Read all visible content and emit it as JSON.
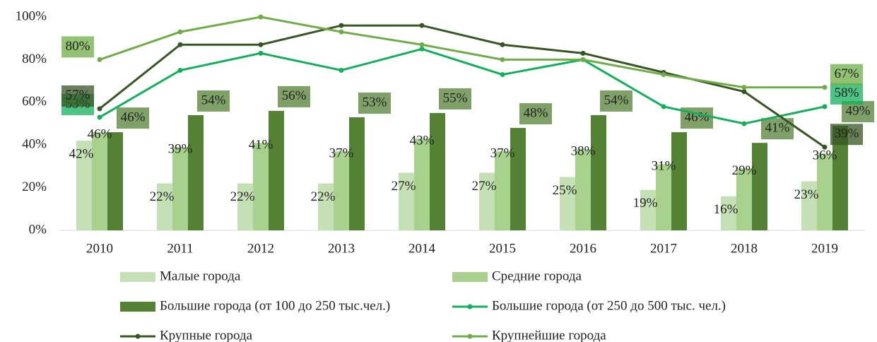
{
  "chart_data": {
    "type": "bar",
    "categories": [
      "2010",
      "2011",
      "2012",
      "2013",
      "2014",
      "2015",
      "2016",
      "2017",
      "2018",
      "2019"
    ],
    "ylim": [
      0,
      100
    ],
    "yticks": [
      {
        "value": 0,
        "label": "0%"
      },
      {
        "value": 20,
        "label": "20%"
      },
      {
        "value": 40,
        "label": "40%"
      },
      {
        "value": 60,
        "label": "60%"
      },
      {
        "value": 80,
        "label": "80%"
      },
      {
        "value": 100,
        "label": "100%"
      }
    ],
    "grid": false,
    "legend": "bottom",
    "series": [
      {
        "name": "Малые города",
        "type": "bar",
        "color": "#c5e0b4",
        "values": [
          42,
          22,
          22,
          22,
          27,
          27,
          25,
          19,
          16,
          23
        ],
        "value_labels": [
          "42%",
          "22%",
          "22%",
          "22%",
          "27%",
          "27%",
          "25%",
          "19%",
          "16%",
          "23%"
        ]
      },
      {
        "name": "Средние города",
        "type": "bar",
        "color": "#a9d18e",
        "values": [
          46,
          39,
          41,
          37,
          43,
          37,
          38,
          31,
          29,
          36
        ],
        "value_labels": [
          "46%",
          "39%",
          "41%",
          "37%",
          "43%",
          "37%",
          "38%",
          "31%",
          "29%",
          "36%"
        ]
      },
      {
        "name": "Большие города (от 100 до 250 тыс.чел.)",
        "type": "bar",
        "color": "#548235",
        "values": [
          46,
          54,
          56,
          53,
          55,
          48,
          54,
          46,
          41,
          49
        ],
        "value_labels": [
          "46%",
          "54%",
          "56%",
          "53%",
          "55%",
          "48%",
          "54%",
          "46%",
          "41%",
          "49%"
        ]
      },
      {
        "name": "Большие города (от 250 до 500 тыс. чел.)",
        "type": "line",
        "color": "#12b05a",
        "values": [
          53,
          75,
          83,
          75,
          85,
          73,
          80,
          58,
          50,
          58
        ],
        "value_labels": [
          "53%",
          null,
          null,
          null,
          null,
          null,
          null,
          null,
          null,
          "58%"
        ]
      },
      {
        "name": "Крупные города",
        "type": "line",
        "color": "#375623",
        "values": [
          57,
          87,
          87,
          96,
          96,
          87,
          83,
          74,
          65,
          39
        ],
        "value_labels": [
          "57%",
          null,
          null,
          null,
          null,
          null,
          null,
          null,
          null,
          "39%"
        ]
      },
      {
        "name": "Крупнейшие города",
        "type": "line",
        "color": "#70ad47",
        "values": [
          80,
          93,
          100,
          93,
          87,
          80,
          80,
          73,
          67,
          67
        ],
        "value_labels": [
          "80%",
          null,
          null,
          null,
          null,
          null,
          null,
          null,
          null,
          "67%"
        ]
      }
    ]
  }
}
